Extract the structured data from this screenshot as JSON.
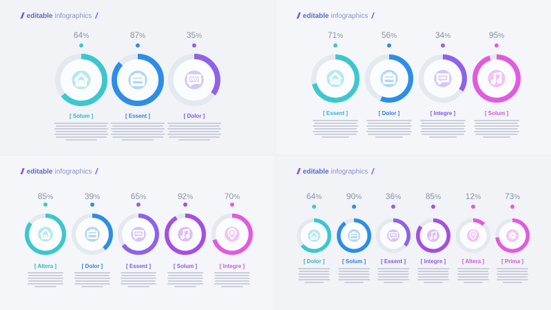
{
  "header": {
    "bold": "editable",
    "light": "infographics"
  },
  "colors": {
    "teal": "#3cc7cf",
    "blue": "#2c8ee6",
    "violet": "#8d63e8",
    "purple": "#a54fe0",
    "magenta": "#e25ae0",
    "label_teal": "#2fb4c0",
    "label_blue": "#2e7fe0",
    "label_violet": "#7b57e6",
    "label_purple": "#8f58e4",
    "label_magenta": "#cf55de"
  },
  "panels": [
    {
      "id": "tl",
      "items": [
        {
          "percent": 64,
          "label": "[ Solum ]",
          "color": "teal",
          "icon": "house-icon"
        },
        {
          "percent": 87,
          "label": "[ Essent ]",
          "color": "blue",
          "icon": "briefcase-icon"
        },
        {
          "percent": 35,
          "label": "[ Dolor ]",
          "color": "violet",
          "icon": "chat-bubble-icon"
        }
      ]
    },
    {
      "id": "tr",
      "items": [
        {
          "percent": 71,
          "label": "[ Essent ]",
          "color": "teal",
          "icon": "house-icon"
        },
        {
          "percent": 56,
          "label": "[ Dolor ]",
          "color": "blue",
          "icon": "briefcase-icon"
        },
        {
          "percent": 34,
          "label": "[ Integre ]",
          "color": "violet",
          "icon": "chat-bubble-icon"
        },
        {
          "percent": 95,
          "label": "[ Solum ]",
          "color": "magenta",
          "icon": "music-note-icon"
        }
      ]
    },
    {
      "id": "bl",
      "items": [
        {
          "percent": 85,
          "label": "[ Altera ]",
          "color": "teal",
          "icon": "house-icon"
        },
        {
          "percent": 39,
          "label": "[ Dolor ]",
          "color": "blue",
          "icon": "briefcase-icon"
        },
        {
          "percent": 65,
          "label": "[ Essent ]",
          "color": "violet",
          "icon": "chat-bubble-icon"
        },
        {
          "percent": 92,
          "label": "[ Solum ]",
          "color": "purple",
          "icon": "music-note-icon"
        },
        {
          "percent": 70,
          "label": "[ Integre ]",
          "color": "magenta",
          "icon": "map-pin-icon"
        }
      ]
    },
    {
      "id": "br",
      "items": [
        {
          "percent": 64,
          "label": "[ Dolor ]",
          "color": "teal",
          "icon": "house-icon"
        },
        {
          "percent": 90,
          "label": "[ Solum ]",
          "color": "blue",
          "icon": "briefcase-icon"
        },
        {
          "percent": 36,
          "label": "[ Essent ]",
          "color": "violet",
          "icon": "chat-bubble-icon"
        },
        {
          "percent": 85,
          "label": "[ Integre ]",
          "color": "purple",
          "icon": "music-note-icon"
        },
        {
          "percent": 12,
          "label": "[ Altera ]",
          "color": "magenta",
          "icon": "map-pin-icon"
        },
        {
          "percent": 73,
          "label": "[ Prima ]",
          "color": "magenta",
          "icon": "gear-icon"
        }
      ]
    }
  ]
}
